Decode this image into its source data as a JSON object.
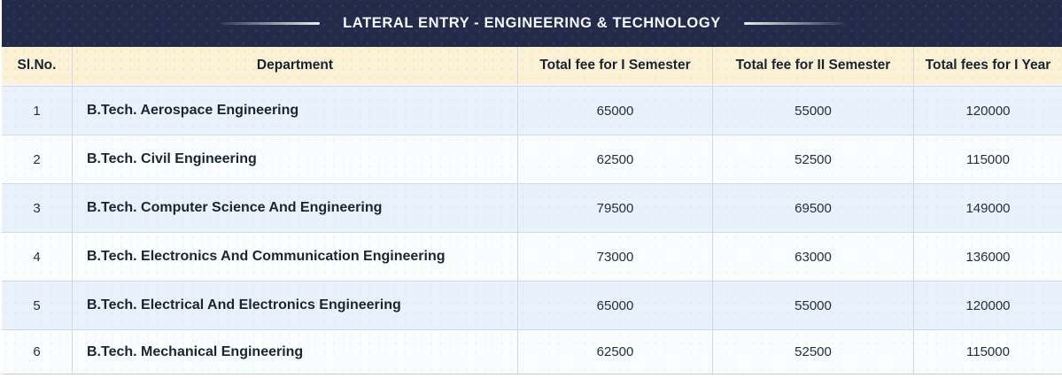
{
  "banner": {
    "title": "LATERAL ENTRY - ENGINEERING & TECHNOLOGY"
  },
  "table": {
    "columns": [
      "Sl.No.",
      "Department",
      "Total fee for I Semester",
      "Total fee for II Semester",
      "Total fees for I Year"
    ],
    "rows": [
      {
        "sl_no": "1",
        "department": "B.Tech. Aerospace Engineering",
        "fee_sem1": "65000",
        "fee_sem2": "55000",
        "fee_year1": "120000"
      },
      {
        "sl_no": "2",
        "department": "B.Tech. Civil Engineering",
        "fee_sem1": "62500",
        "fee_sem2": "52500",
        "fee_year1": "115000"
      },
      {
        "sl_no": "3",
        "department": "B.Tech. Computer Science And Engineering",
        "fee_sem1": "79500",
        "fee_sem2": "69500",
        "fee_year1": "149000"
      },
      {
        "sl_no": "4",
        "department": "B.Tech. Electronics And Communication Engineering",
        "fee_sem1": "73000",
        "fee_sem2": "63000",
        "fee_year1": "136000"
      },
      {
        "sl_no": "5",
        "department": "B.Tech. Electrical And Electronics Engineering",
        "fee_sem1": "65000",
        "fee_sem2": "55000",
        "fee_year1": "120000"
      },
      {
        "sl_no": "6",
        "department": "B.Tech. Mechanical Engineering",
        "fee_sem1": "62500",
        "fee_sem2": "52500",
        "fee_year1": "115000"
      }
    ]
  },
  "colors": {
    "banner_bg": "#222b4a",
    "header_bg": "#fbf1d4",
    "row_alt_bg": "#e9f2fc",
    "row_bg": "#fafdfe",
    "grid_line": "#d4d8dc",
    "text_dark": "#1b2431"
  }
}
